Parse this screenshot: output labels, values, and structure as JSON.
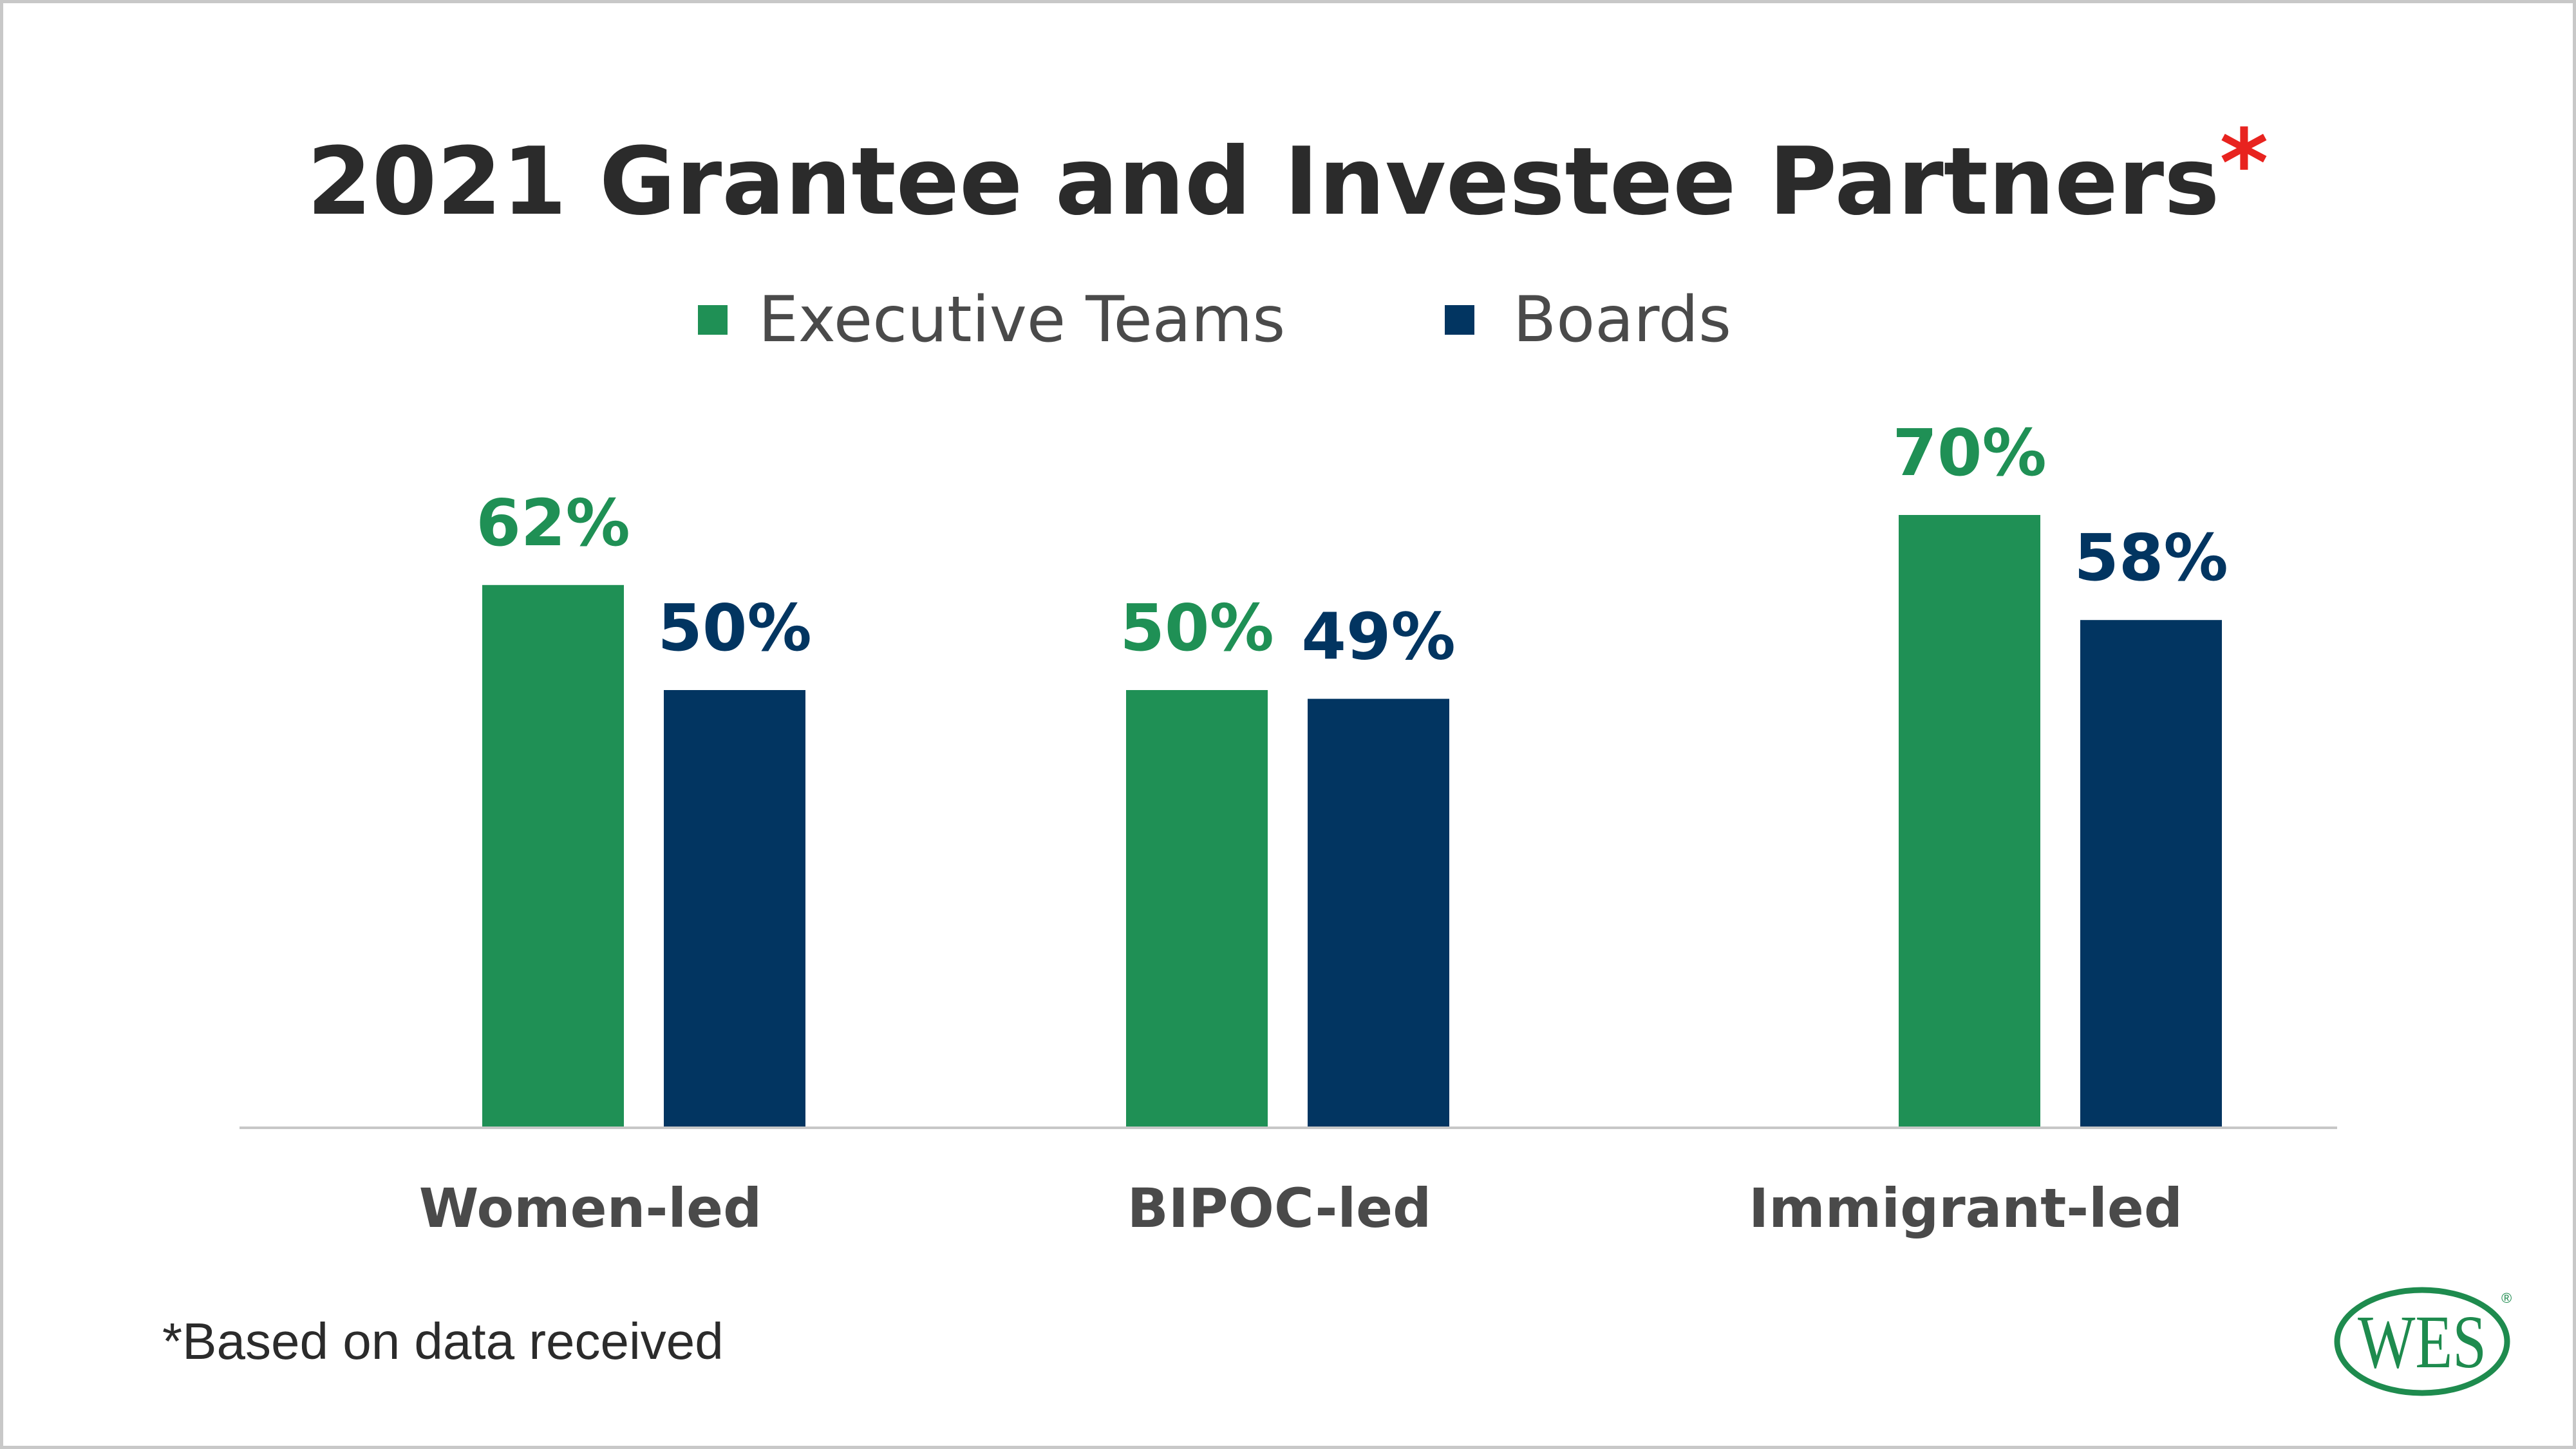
{
  "colors": {
    "executive": "#1f9055",
    "boards": "#023561",
    "title": "#2b2b2b",
    "asterisk": "#e8231f",
    "axis": "#c7c7c7",
    "logo": "#1e8b4e"
  },
  "footnote": "*Based on data received",
  "logo": {
    "text": "WES",
    "mark": "®"
  },
  "chart_data": {
    "type": "bar",
    "title": "2021 Grantee and Investee Partners",
    "title_marker": "*",
    "categories": [
      "Women-led",
      "BIPOC-led",
      "Immigrant-led"
    ],
    "series": [
      {
        "name": "Executive Teams",
        "values": [
          62,
          50,
          70
        ],
        "labels": [
          "62%",
          "50%",
          "70%"
        ]
      },
      {
        "name": "Boards",
        "values": [
          50,
          49,
          58
        ],
        "labels": [
          "50%",
          "49%",
          "58%"
        ]
      }
    ],
    "ylim": [
      0,
      100
    ],
    "grid": false,
    "legend": "top"
  }
}
